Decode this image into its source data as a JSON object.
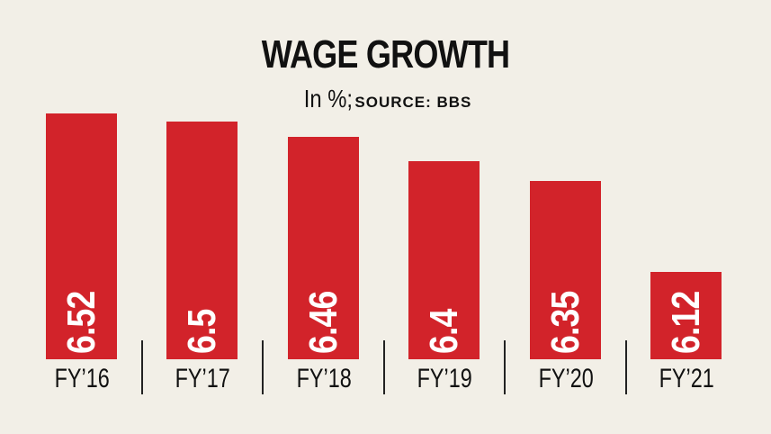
{
  "header": {
    "title": "WAGE GROWTH",
    "unit": "In %;",
    "source": "SOURCE: BBS"
  },
  "colors": {
    "background": "#f2efe7",
    "bar": "#d2232a",
    "text": "#111111",
    "value_text": "#ffffff"
  },
  "bars": [
    {
      "label": "FY’16",
      "value": "6.52"
    },
    {
      "label": "FY’17",
      "value": "6.5"
    },
    {
      "label": "FY’18",
      "value": "6.46"
    },
    {
      "label": "FY’19",
      "value": "6.4"
    },
    {
      "label": "FY’20",
      "value": "6.35"
    },
    {
      "label": "FY’21",
      "value": "6.12"
    }
  ],
  "chart_data": {
    "type": "bar",
    "title": "WAGE GROWTH",
    "subtitle": "In %; SOURCE: BBS",
    "categories": [
      "FY’16",
      "FY’17",
      "FY’18",
      "FY’19",
      "FY’20",
      "FY’21"
    ],
    "values": [
      6.52,
      6.5,
      6.46,
      6.4,
      6.35,
      6.12
    ],
    "xlabel": "",
    "ylabel": "In %",
    "data_labels": "inside-bar-vertical",
    "grid": false,
    "legend": null
  }
}
